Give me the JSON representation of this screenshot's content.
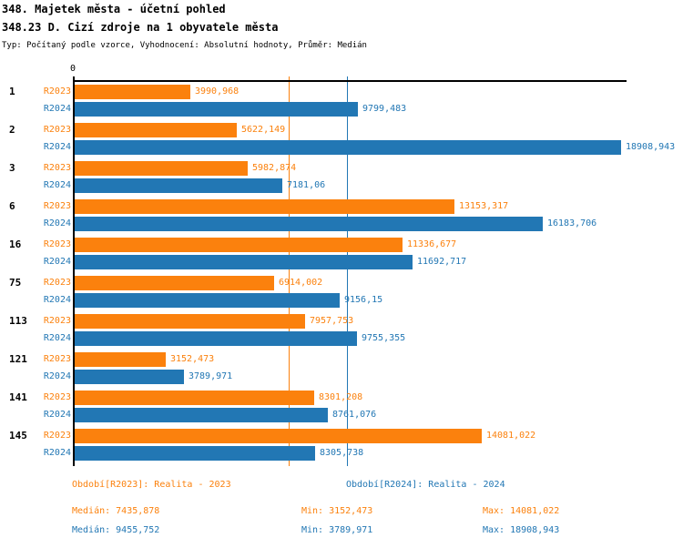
{
  "header": {
    "title1": "348. Majetek města - účetní pohled",
    "title2": "348.23 D. Cizí zdroje na 1 obyvatele města",
    "meta": "Typ: Počítaný podle vzorce, Vyhodnocení: Absolutní hodnoty, Průměr: Medián"
  },
  "colors": {
    "r2023": "#fb810d",
    "r2024": "#2277b4",
    "axis": "#000000"
  },
  "chart_data": {
    "type": "bar",
    "orientation": "horizontal",
    "origin_tick_label": "0",
    "categories": [
      "1",
      "2",
      "3",
      "6",
      "16",
      "75",
      "113",
      "121",
      "141",
      "145"
    ],
    "series": [
      {
        "name": "R2023",
        "color": "#fb810d",
        "values": [
          3990.968,
          5622.149,
          5982.874,
          13153.317,
          11336.677,
          6914.002,
          7957.753,
          3152.473,
          8301.208,
          14081.022
        ],
        "labels": [
          "3990,968",
          "5622,149",
          "5982,874",
          "13153,317",
          "11336,677",
          "6914,002",
          "7957,753",
          "3152,473",
          "8301,208",
          "14081,022"
        ]
      },
      {
        "name": "R2024",
        "color": "#2277b4",
        "values": [
          9799.483,
          18908.943,
          7181.06,
          16183.706,
          11692.717,
          9156.15,
          9755.355,
          3789.971,
          8761.076,
          8305.738
        ],
        "labels": [
          "9799,483",
          "18908,943",
          "7181,06",
          "16183,706",
          "11692,717",
          "9156,15",
          "9755,355",
          "3789,971",
          "8761,076",
          "8305,738"
        ]
      }
    ],
    "xlim": [
      0,
      18908.943
    ],
    "gridlines": [
      {
        "series": "R2023",
        "label": "Medián",
        "value": 7435.878,
        "color": "#fb810d"
      },
      {
        "series": "R2024",
        "label": "Medián",
        "value": 9455.752,
        "color": "#2277b4"
      }
    ],
    "grid": "median-vertical-lines",
    "legend_position": "bottom",
    "value_labels": "outside-end"
  },
  "legend": {
    "r2023": "Období[R2023]: Realita - 2023",
    "r2024": "Období[R2024]: Realita - 2024"
  },
  "stats": {
    "r2023": {
      "median": "Medián: 7435,878",
      "min": "Min: 3152,473",
      "max": "Max: 14081,022"
    },
    "r2024": {
      "median": "Medián: 9455,752",
      "min": "Min: 3789,971",
      "max": "Max: 18908,943"
    }
  }
}
